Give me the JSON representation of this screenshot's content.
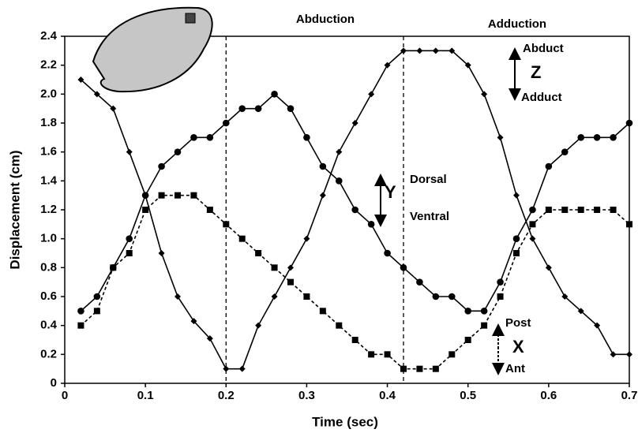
{
  "chart_data": {
    "type": "line",
    "x_label": "Time (sec)",
    "y_label": "Displacement (cm)",
    "x": [
      0.02,
      0.04,
      0.06,
      0.08,
      0.1,
      0.12,
      0.14,
      0.16,
      0.18,
      0.2,
      0.22,
      0.24,
      0.26,
      0.28,
      0.3,
      0.32,
      0.34,
      0.36,
      0.38,
      0.4,
      0.42,
      0.44,
      0.46,
      0.48,
      0.5,
      0.52,
      0.54,
      0.56,
      0.58,
      0.6,
      0.62,
      0.64,
      0.66,
      0.68,
      0.7
    ],
    "series": [
      {
        "marker": "diamond",
        "dashed": false,
        "color": "#000000",
        "values": [
          2.1,
          2.0,
          1.9,
          1.6,
          1.3,
          0.9,
          0.6,
          0.43,
          0.31,
          0.1,
          0.1,
          0.4,
          0.6,
          0.8,
          1.0,
          1.3,
          1.6,
          1.8,
          2.0,
          2.2,
          2.3,
          2.3,
          2.3,
          2.3,
          2.2,
          2.0,
          1.7,
          1.3,
          1.0,
          0.8,
          0.6,
          0.5,
          0.4,
          0.2,
          0.2
        ]
      },
      {
        "marker": "circle",
        "dashed": false,
        "color": "#000000",
        "values": [
          0.5,
          0.6,
          0.8,
          1.0,
          1.3,
          1.5,
          1.6,
          1.7,
          1.7,
          1.8,
          1.9,
          1.9,
          2.0,
          1.9,
          1.7,
          1.5,
          1.4,
          1.2,
          1.1,
          0.9,
          0.8,
          0.7,
          0.6,
          0.6,
          0.5,
          0.5,
          0.7,
          1.0,
          1.2,
          1.5,
          1.6,
          1.7,
          1.7,
          1.7,
          1.8
        ]
      },
      {
        "marker": "square",
        "dashed": true,
        "color": "#000000",
        "values": [
          0.4,
          0.5,
          0.8,
          0.9,
          1.2,
          1.3,
          1.3,
          1.3,
          1.2,
          1.1,
          1.0,
          0.9,
          0.8,
          0.7,
          0.6,
          0.5,
          0.4,
          0.3,
          0.2,
          0.2,
          0.1,
          0.1,
          0.1,
          0.2,
          0.3,
          0.4,
          0.6,
          0.9,
          1.1,
          1.2,
          1.2,
          1.2,
          1.2,
          1.2,
          1.1
        ]
      }
    ],
    "xlim": [
      0,
      0.7
    ],
    "xticks": [
      0,
      0.1,
      0.2,
      0.3,
      0.4,
      0.5,
      0.6,
      0.7
    ],
    "ylim": [
      0,
      2.4
    ],
    "yticks": [
      0,
      0.2,
      0.4,
      0.6,
      0.8,
      {
        "value": 1,
        "label": "1.0"
      },
      1.2,
      1.4,
      1.6,
      1.8,
      {
        "value": 2,
        "label": "2.0"
      },
      2.2,
      2.4
    ],
    "vlines": [
      0.2,
      0.42
    ],
    "phase_labels": [
      "Abduction",
      "Adduction"
    ],
    "annotations": [
      "Abduct",
      "Z",
      "Adduct",
      "Y",
      "Dorsal",
      "Ventral",
      "Post",
      "X",
      "Ant"
    ]
  }
}
